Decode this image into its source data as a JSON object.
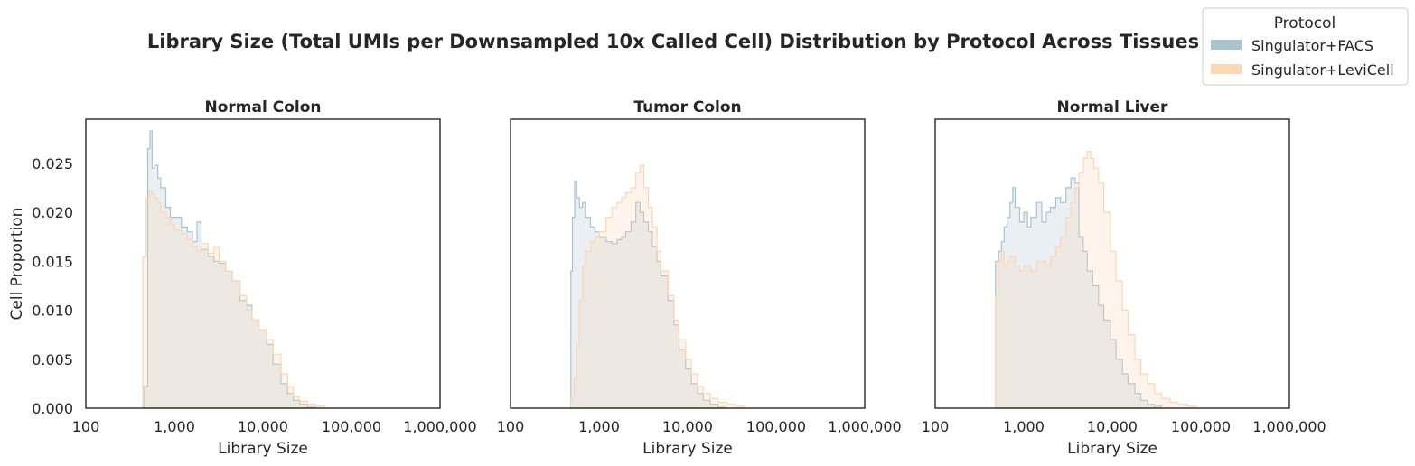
{
  "chart_data": {
    "type": "histogram",
    "title": "Library Size (Total UMIs per Downsampled 10x Called Cell) Distribution by Protocol Across Tissues",
    "xlabel": "Library Size",
    "ylabel": "Cell Proportion",
    "x_scale": "log",
    "xlim": [
      100,
      1000000
    ],
    "ylim": [
      0,
      0.0295
    ],
    "x_ticks": [
      "100",
      "1,000",
      "10,000",
      "100,000",
      "1,000,000"
    ],
    "y_ticks": [
      "0.000",
      "0.005",
      "0.010",
      "0.015",
      "0.020",
      "0.025"
    ],
    "y_tick_values": [
      0,
      0.005,
      0.01,
      0.015,
      0.02,
      0.025
    ],
    "grid": false,
    "histtype": "step, filled",
    "legend": {
      "title": "Protocol",
      "placement": "top-right",
      "entries": [
        {
          "name": "Singulator+FACS",
          "color": "#a9c3cf"
        },
        {
          "name": "Singulator+LeviCell",
          "color": "#fdd6b3"
        }
      ]
    },
    "panels": [
      {
        "title": "Normal Colon",
        "series": [
          {
            "name": "Singulator+FACS",
            "color": "#a9c3cf",
            "points": [
              [
                450,
                0.0022
              ],
              [
                500,
                0.0265
              ],
              [
                530,
                0.0283
              ],
              [
                560,
                0.0245
              ],
              [
                600,
                0.0248
              ],
              [
                650,
                0.0235
              ],
              [
                700,
                0.0225
              ],
              [
                800,
                0.0205
              ],
              [
                900,
                0.0195
              ],
              [
                1000,
                0.0195
              ],
              [
                1200,
                0.0185
              ],
              [
                1400,
                0.018
              ],
              [
                1600,
                0.017
              ],
              [
                1800,
                0.019
              ],
              [
                2000,
                0.0162
              ],
              [
                2400,
                0.0155
              ],
              [
                2800,
                0.015
              ],
              [
                3200,
                0.0148
              ],
              [
                3800,
                0.014
              ],
              [
                4500,
                0.013
              ],
              [
                5500,
                0.011
              ],
              [
                6500,
                0.0105
              ],
              [
                7500,
                0.009
              ],
              [
                9000,
                0.008
              ],
              [
                11000,
                0.0065
              ],
              [
                13000,
                0.0045
              ],
              [
                16000,
                0.0025
              ],
              [
                19000,
                0.0015
              ],
              [
                22000,
                0.0008
              ],
              [
                26000,
                0.0004
              ],
              [
                32000,
                0.0001
              ]
            ]
          },
          {
            "name": "Singulator+LeviCell",
            "color": "#fdd6b3",
            "points": [
              [
                440,
                0.0155
              ],
              [
                480,
                0.0215
              ],
              [
                520,
                0.0222
              ],
              [
                560,
                0.0218
              ],
              [
                600,
                0.0215
              ],
              [
                650,
                0.021
              ],
              [
                700,
                0.02
              ],
              [
                800,
                0.0195
              ],
              [
                900,
                0.0188
              ],
              [
                1000,
                0.0182
              ],
              [
                1200,
                0.0178
              ],
              [
                1400,
                0.0172
              ],
              [
                1600,
                0.0165
              ],
              [
                1800,
                0.016
              ],
              [
                2000,
                0.0168
              ],
              [
                2400,
                0.0158
              ],
              [
                2800,
                0.0165
              ],
              [
                3200,
                0.015
              ],
              [
                3800,
                0.014
              ],
              [
                4500,
                0.013
              ],
              [
                5500,
                0.0115
              ],
              [
                6500,
                0.01
              ],
              [
                7500,
                0.009
              ],
              [
                9000,
                0.008
              ],
              [
                11000,
                0.007
              ],
              [
                13000,
                0.0055
              ],
              [
                16000,
                0.0035
              ],
              [
                19000,
                0.0022
              ],
              [
                22000,
                0.0012
              ],
              [
                26000,
                0.0007
              ],
              [
                32000,
                0.0004
              ],
              [
                40000,
                0.0002
              ]
            ]
          }
        ]
      },
      {
        "title": "Tumor Colon",
        "series": [
          {
            "name": "Singulator+FACS",
            "color": "#a9c3cf",
            "points": [
              [
                480,
                0.014
              ],
              [
                500,
                0.0195
              ],
              [
                530,
                0.0232
              ],
              [
                560,
                0.0215
              ],
              [
                600,
                0.0205
              ],
              [
                650,
                0.021
              ],
              [
                700,
                0.0195
              ],
              [
                800,
                0.0185
              ],
              [
                900,
                0.018
              ],
              [
                1000,
                0.0175
              ],
              [
                1200,
                0.017
              ],
              [
                1400,
                0.0168
              ],
              [
                1600,
                0.0172
              ],
              [
                1800,
                0.0175
              ],
              [
                2000,
                0.018
              ],
              [
                2300,
                0.019
              ],
              [
                2600,
                0.021
              ],
              [
                2900,
                0.02
              ],
              [
                3200,
                0.019
              ],
              [
                3600,
                0.018
              ],
              [
                4000,
                0.0165
              ],
              [
                4500,
                0.015
              ],
              [
                5000,
                0.0135
              ],
              [
                6000,
                0.011
              ],
              [
                7000,
                0.0085
              ],
              [
                8000,
                0.006
              ],
              [
                9500,
                0.004
              ],
              [
                11000,
                0.0025
              ],
              [
                13000,
                0.0015
              ],
              [
                15000,
                0.0008
              ],
              [
                18000,
                0.0004
              ],
              [
                22000,
                0.0001
              ]
            ]
          },
          {
            "name": "Singulator+LeviCell",
            "color": "#fdd6b3",
            "points": [
              [
                480,
                0.001
              ],
              [
                520,
                0.003
              ],
              [
                560,
                0.0065
              ],
              [
                600,
                0.011
              ],
              [
                650,
                0.0145
              ],
              [
                700,
                0.016
              ],
              [
                800,
                0.017
              ],
              [
                900,
                0.0175
              ],
              [
                1000,
                0.018
              ],
              [
                1200,
                0.0195
              ],
              [
                1400,
                0.0205
              ],
              [
                1600,
                0.021
              ],
              [
                1800,
                0.0215
              ],
              [
                2000,
                0.022
              ],
              [
                2300,
                0.0225
              ],
              [
                2600,
                0.024
              ],
              [
                2900,
                0.0248
              ],
              [
                3200,
                0.0225
              ],
              [
                3600,
                0.0205
              ],
              [
                4000,
                0.0185
              ],
              [
                4500,
                0.016
              ],
              [
                5000,
                0.014
              ],
              [
                6000,
                0.0115
              ],
              [
                7000,
                0.009
              ],
              [
                8000,
                0.007
              ],
              [
                9500,
                0.005
              ],
              [
                11000,
                0.0035
              ],
              [
                13000,
                0.0022
              ],
              [
                15000,
                0.0015
              ],
              [
                18000,
                0.001
              ],
              [
                22000,
                0.0006
              ],
              [
                28000,
                0.0004
              ],
              [
                35000,
                0.0002
              ]
            ]
          }
        ]
      },
      {
        "title": "Normal Liver",
        "series": [
          {
            "name": "Singulator+FACS",
            "color": "#a9c3cf",
            "points": [
              [
                480,
                0.015
              ],
              [
                520,
                0.016
              ],
              [
                560,
                0.017
              ],
              [
                600,
                0.0185
              ],
              [
                650,
                0.0195
              ],
              [
                700,
                0.021
              ],
              [
                750,
                0.0225
              ],
              [
                800,
                0.0205
              ],
              [
                900,
                0.019
              ],
              [
                1000,
                0.02
              ],
              [
                1100,
                0.0185
              ],
              [
                1200,
                0.0195
              ],
              [
                1400,
                0.021
              ],
              [
                1600,
                0.019
              ],
              [
                1800,
                0.02
              ],
              [
                2000,
                0.0205
              ],
              [
                2300,
                0.0215
              ],
              [
                2600,
                0.021
              ],
              [
                3000,
                0.0225
              ],
              [
                3400,
                0.0235
              ],
              [
                3800,
                0.023
              ],
              [
                4200,
                0.0175
              ],
              [
                4700,
                0.016
              ],
              [
                5200,
                0.014
              ],
              [
                6000,
                0.0125
              ],
              [
                7000,
                0.0105
              ],
              [
                8000,
                0.009
              ],
              [
                9500,
                0.007
              ],
              [
                11000,
                0.005
              ],
              [
                13000,
                0.0035
              ],
              [
                15000,
                0.0025
              ],
              [
                18000,
                0.0015
              ],
              [
                21000,
                0.0008
              ],
              [
                25000,
                0.0004
              ],
              [
                30000,
                0.0002
              ]
            ]
          },
          {
            "name": "Singulator+LeviCell",
            "color": "#fdd6b3",
            "points": [
              [
                480,
                0.0115
              ],
              [
                520,
                0.015
              ],
              [
                560,
                0.016
              ],
              [
                600,
                0.0145
              ],
              [
                650,
                0.015
              ],
              [
                700,
                0.0155
              ],
              [
                800,
                0.0145
              ],
              [
                900,
                0.014
              ],
              [
                1000,
                0.0145
              ],
              [
                1200,
                0.014
              ],
              [
                1400,
                0.015
              ],
              [
                1600,
                0.015
              ],
              [
                1800,
                0.0145
              ],
              [
                2000,
                0.0155
              ],
              [
                2300,
                0.0165
              ],
              [
                2600,
                0.0175
              ],
              [
                3000,
                0.0195
              ],
              [
                3400,
                0.021
              ],
              [
                3800,
                0.0225
              ],
              [
                4200,
                0.024
              ],
              [
                4700,
                0.0255
              ],
              [
                5200,
                0.0262
              ],
              [
                5700,
                0.0255
              ],
              [
                6200,
                0.0245
              ],
              [
                7000,
                0.023
              ],
              [
                8000,
                0.02
              ],
              [
                9500,
                0.016
              ],
              [
                11000,
                0.013
              ],
              [
                13000,
                0.01
              ],
              [
                15000,
                0.0075
              ],
              [
                18000,
                0.005
              ],
              [
                21000,
                0.0035
              ],
              [
                25000,
                0.0025
              ],
              [
                30000,
                0.0015
              ],
              [
                36000,
                0.001
              ],
              [
                45000,
                0.0006
              ],
              [
                55000,
                0.0004
              ],
              [
                70000,
                0.0002
              ]
            ]
          }
        ]
      }
    ]
  }
}
